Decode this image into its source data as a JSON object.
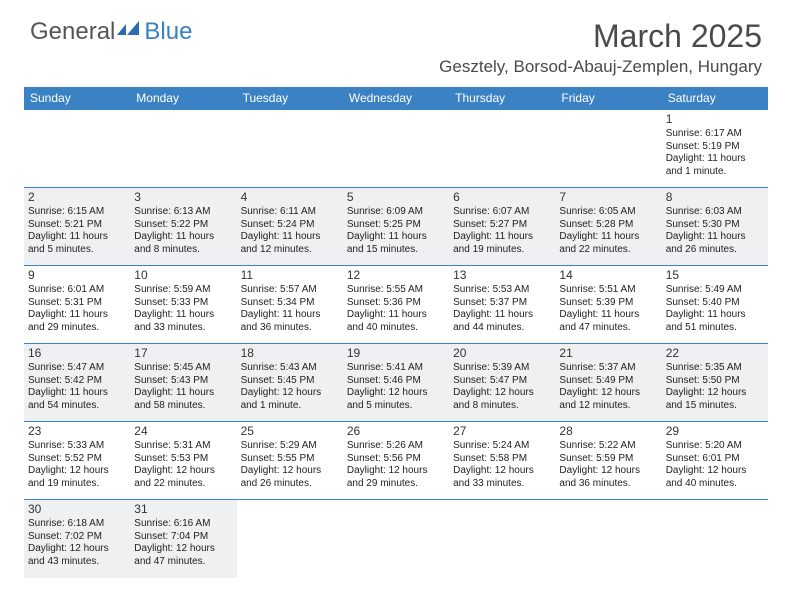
{
  "logo": {
    "general": "General",
    "blue": "Blue"
  },
  "title": "March 2025",
  "location": "Gesztely, Borsod-Abauj-Zemplen, Hungary",
  "colors": {
    "header_bg": "#3b82c4",
    "header_text": "#ffffff",
    "body_text": "#222222",
    "shade_bg": "#eef0f1",
    "border": "#3b82c4",
    "logo_gray": "#555555",
    "logo_blue": "#3b7fc4"
  },
  "day_names": [
    "Sunday",
    "Monday",
    "Tuesday",
    "Wednesday",
    "Thursday",
    "Friday",
    "Saturday"
  ],
  "weeks": [
    [
      {
        "empty": true
      },
      {
        "empty": true
      },
      {
        "empty": true
      },
      {
        "empty": true
      },
      {
        "empty": true
      },
      {
        "empty": true
      },
      {
        "n": "1",
        "sr": "Sunrise: 6:17 AM",
        "ss": "Sunset: 5:19 PM",
        "d1": "Daylight: 11 hours",
        "d2": "and 1 minute."
      }
    ],
    [
      {
        "n": "2",
        "shade": true,
        "sr": "Sunrise: 6:15 AM",
        "ss": "Sunset: 5:21 PM",
        "d1": "Daylight: 11 hours",
        "d2": "and 5 minutes."
      },
      {
        "n": "3",
        "shade": true,
        "sr": "Sunrise: 6:13 AM",
        "ss": "Sunset: 5:22 PM",
        "d1": "Daylight: 11 hours",
        "d2": "and 8 minutes."
      },
      {
        "n": "4",
        "shade": true,
        "sr": "Sunrise: 6:11 AM",
        "ss": "Sunset: 5:24 PM",
        "d1": "Daylight: 11 hours",
        "d2": "and 12 minutes."
      },
      {
        "n": "5",
        "shade": true,
        "sr": "Sunrise: 6:09 AM",
        "ss": "Sunset: 5:25 PM",
        "d1": "Daylight: 11 hours",
        "d2": "and 15 minutes."
      },
      {
        "n": "6",
        "shade": true,
        "sr": "Sunrise: 6:07 AM",
        "ss": "Sunset: 5:27 PM",
        "d1": "Daylight: 11 hours",
        "d2": "and 19 minutes."
      },
      {
        "n": "7",
        "shade": true,
        "sr": "Sunrise: 6:05 AM",
        "ss": "Sunset: 5:28 PM",
        "d1": "Daylight: 11 hours",
        "d2": "and 22 minutes."
      },
      {
        "n": "8",
        "shade": true,
        "sr": "Sunrise: 6:03 AM",
        "ss": "Sunset: 5:30 PM",
        "d1": "Daylight: 11 hours",
        "d2": "and 26 minutes."
      }
    ],
    [
      {
        "n": "9",
        "sr": "Sunrise: 6:01 AM",
        "ss": "Sunset: 5:31 PM",
        "d1": "Daylight: 11 hours",
        "d2": "and 29 minutes."
      },
      {
        "n": "10",
        "sr": "Sunrise: 5:59 AM",
        "ss": "Sunset: 5:33 PM",
        "d1": "Daylight: 11 hours",
        "d2": "and 33 minutes."
      },
      {
        "n": "11",
        "sr": "Sunrise: 5:57 AM",
        "ss": "Sunset: 5:34 PM",
        "d1": "Daylight: 11 hours",
        "d2": "and 36 minutes."
      },
      {
        "n": "12",
        "sr": "Sunrise: 5:55 AM",
        "ss": "Sunset: 5:36 PM",
        "d1": "Daylight: 11 hours",
        "d2": "and 40 minutes."
      },
      {
        "n": "13",
        "sr": "Sunrise: 5:53 AM",
        "ss": "Sunset: 5:37 PM",
        "d1": "Daylight: 11 hours",
        "d2": "and 44 minutes."
      },
      {
        "n": "14",
        "sr": "Sunrise: 5:51 AM",
        "ss": "Sunset: 5:39 PM",
        "d1": "Daylight: 11 hours",
        "d2": "and 47 minutes."
      },
      {
        "n": "15",
        "sr": "Sunrise: 5:49 AM",
        "ss": "Sunset: 5:40 PM",
        "d1": "Daylight: 11 hours",
        "d2": "and 51 minutes."
      }
    ],
    [
      {
        "n": "16",
        "shade": true,
        "sr": "Sunrise: 5:47 AM",
        "ss": "Sunset: 5:42 PM",
        "d1": "Daylight: 11 hours",
        "d2": "and 54 minutes."
      },
      {
        "n": "17",
        "shade": true,
        "sr": "Sunrise: 5:45 AM",
        "ss": "Sunset: 5:43 PM",
        "d1": "Daylight: 11 hours",
        "d2": "and 58 minutes."
      },
      {
        "n": "18",
        "shade": true,
        "sr": "Sunrise: 5:43 AM",
        "ss": "Sunset: 5:45 PM",
        "d1": "Daylight: 12 hours",
        "d2": "and 1 minute."
      },
      {
        "n": "19",
        "shade": true,
        "sr": "Sunrise: 5:41 AM",
        "ss": "Sunset: 5:46 PM",
        "d1": "Daylight: 12 hours",
        "d2": "and 5 minutes."
      },
      {
        "n": "20",
        "shade": true,
        "sr": "Sunrise: 5:39 AM",
        "ss": "Sunset: 5:47 PM",
        "d1": "Daylight: 12 hours",
        "d2": "and 8 minutes."
      },
      {
        "n": "21",
        "shade": true,
        "sr": "Sunrise: 5:37 AM",
        "ss": "Sunset: 5:49 PM",
        "d1": "Daylight: 12 hours",
        "d2": "and 12 minutes."
      },
      {
        "n": "22",
        "shade": true,
        "sr": "Sunrise: 5:35 AM",
        "ss": "Sunset: 5:50 PM",
        "d1": "Daylight: 12 hours",
        "d2": "and 15 minutes."
      }
    ],
    [
      {
        "n": "23",
        "sr": "Sunrise: 5:33 AM",
        "ss": "Sunset: 5:52 PM",
        "d1": "Daylight: 12 hours",
        "d2": "and 19 minutes."
      },
      {
        "n": "24",
        "sr": "Sunrise: 5:31 AM",
        "ss": "Sunset: 5:53 PM",
        "d1": "Daylight: 12 hours",
        "d2": "and 22 minutes."
      },
      {
        "n": "25",
        "sr": "Sunrise: 5:29 AM",
        "ss": "Sunset: 5:55 PM",
        "d1": "Daylight: 12 hours",
        "d2": "and 26 minutes."
      },
      {
        "n": "26",
        "sr": "Sunrise: 5:26 AM",
        "ss": "Sunset: 5:56 PM",
        "d1": "Daylight: 12 hours",
        "d2": "and 29 minutes."
      },
      {
        "n": "27",
        "sr": "Sunrise: 5:24 AM",
        "ss": "Sunset: 5:58 PM",
        "d1": "Daylight: 12 hours",
        "d2": "and 33 minutes."
      },
      {
        "n": "28",
        "sr": "Sunrise: 5:22 AM",
        "ss": "Sunset: 5:59 PM",
        "d1": "Daylight: 12 hours",
        "d2": "and 36 minutes."
      },
      {
        "n": "29",
        "sr": "Sunrise: 5:20 AM",
        "ss": "Sunset: 6:01 PM",
        "d1": "Daylight: 12 hours",
        "d2": "and 40 minutes."
      }
    ],
    [
      {
        "n": "30",
        "shade": true,
        "sr": "Sunrise: 6:18 AM",
        "ss": "Sunset: 7:02 PM",
        "d1": "Daylight: 12 hours",
        "d2": "and 43 minutes."
      },
      {
        "n": "31",
        "shade": true,
        "sr": "Sunrise: 6:16 AM",
        "ss": "Sunset: 7:04 PM",
        "d1": "Daylight: 12 hours",
        "d2": "and 47 minutes."
      },
      {
        "empty": true
      },
      {
        "empty": true
      },
      {
        "empty": true
      },
      {
        "empty": true
      },
      {
        "empty": true
      }
    ]
  ]
}
